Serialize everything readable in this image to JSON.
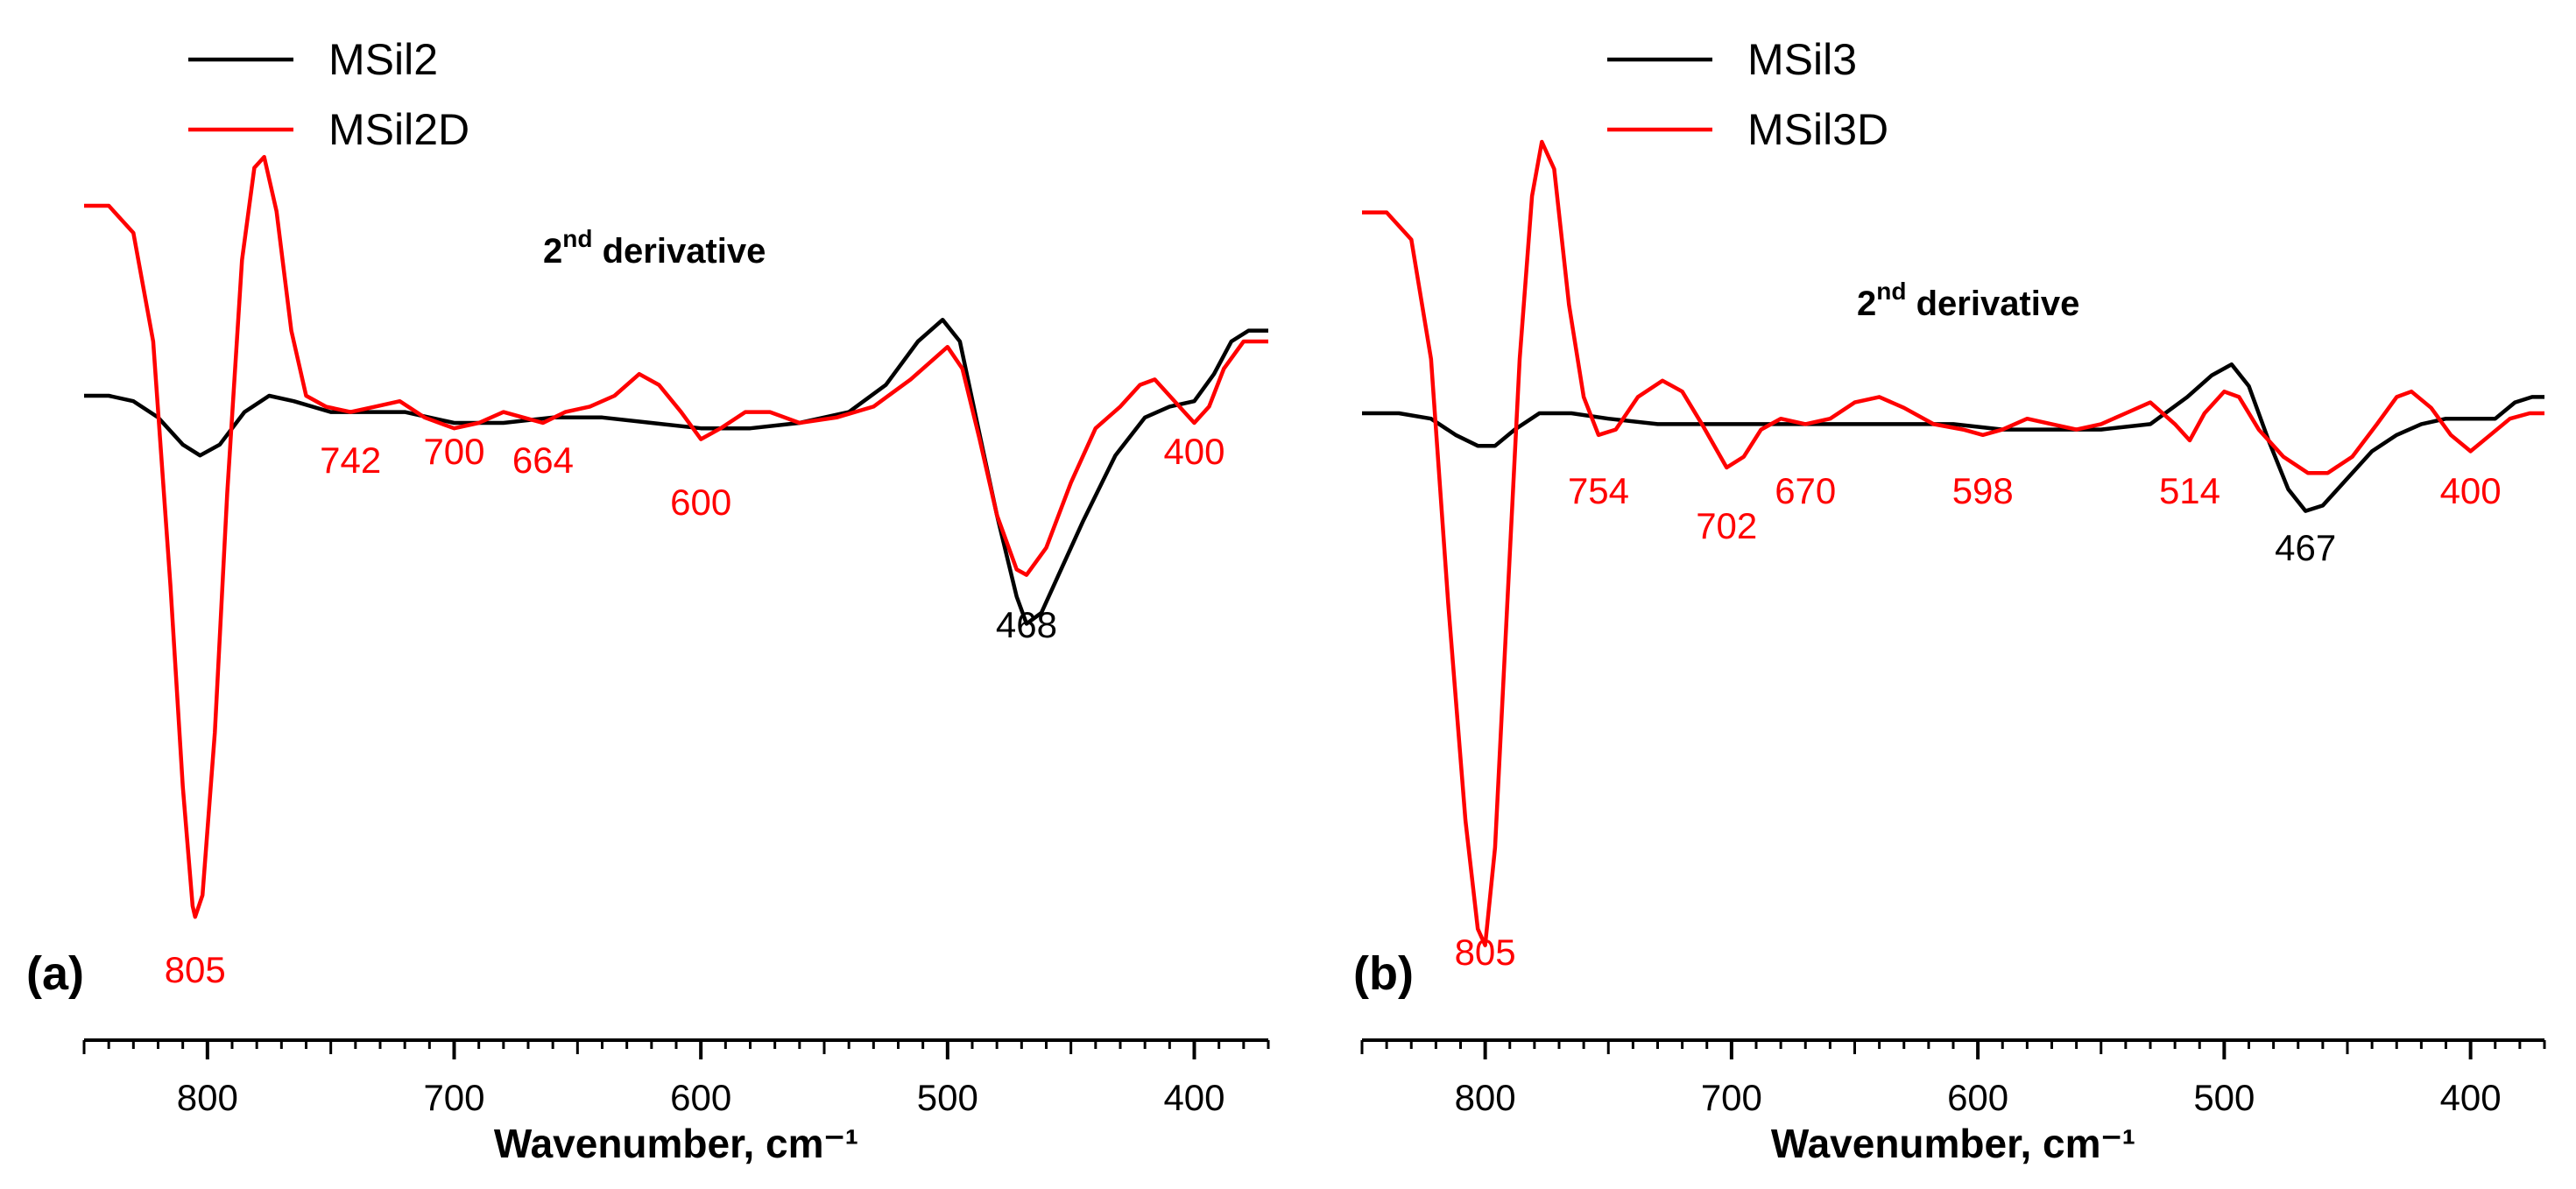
{
  "chart_data": [
    {
      "type": "line",
      "panel_label": "(a)",
      "title": "2nd derivative",
      "title_main": "2",
      "title_sup": "nd",
      "title_rest": " derivative",
      "xlabel": "Wavenumber, cm⁻¹",
      "ylabel": "",
      "xlim": [
        850,
        370
      ],
      "ylim": [
        -1.0,
        0.45
      ],
      "x_ticks": [
        800,
        700,
        600,
        500,
        400
      ],
      "x_tick_labels": [
        "800",
        "700",
        "600",
        "500",
        "400"
      ],
      "legend_position": "top-left",
      "series": [
        {
          "name": "MSil2",
          "color": "#000000",
          "points": [
            [
              850,
              0.0
            ],
            [
              840,
              0.0
            ],
            [
              830,
              -0.01
            ],
            [
              820,
              -0.04
            ],
            [
              810,
              -0.09
            ],
            [
              803,
              -0.11
            ],
            [
              795,
              -0.09
            ],
            [
              785,
              -0.03
            ],
            [
              775,
              0.0
            ],
            [
              765,
              -0.01
            ],
            [
              750,
              -0.03
            ],
            [
              740,
              -0.03
            ],
            [
              720,
              -0.03
            ],
            [
              700,
              -0.05
            ],
            [
              680,
              -0.05
            ],
            [
              660,
              -0.04
            ],
            [
              640,
              -0.04
            ],
            [
              620,
              -0.05
            ],
            [
              600,
              -0.06
            ],
            [
              580,
              -0.06
            ],
            [
              560,
              -0.05
            ],
            [
              540,
              -0.03
            ],
            [
              525,
              0.02
            ],
            [
              512,
              0.1
            ],
            [
              502,
              0.14
            ],
            [
              495,
              0.1
            ],
            [
              488,
              -0.05
            ],
            [
              480,
              -0.22
            ],
            [
              472,
              -0.37
            ],
            [
              468,
              -0.42
            ],
            [
              462,
              -0.4
            ],
            [
              455,
              -0.33
            ],
            [
              445,
              -0.23
            ],
            [
              432,
              -0.11
            ],
            [
              420,
              -0.04
            ],
            [
              410,
              -0.02
            ],
            [
              400,
              -0.01
            ],
            [
              392,
              0.04
            ],
            [
              385,
              0.1
            ],
            [
              378,
              0.12
            ],
            [
              370,
              0.12
            ]
          ]
        },
        {
          "name": "MSil2D",
          "color": "#ff0000",
          "points": [
            [
              850,
              0.35
            ],
            [
              840,
              0.35
            ],
            [
              830,
              0.3
            ],
            [
              822,
              0.1
            ],
            [
              815,
              -0.35
            ],
            [
              810,
              -0.72
            ],
            [
              806,
              -0.94
            ],
            [
              805,
              -0.96
            ],
            [
              802,
              -0.92
            ],
            [
              797,
              -0.62
            ],
            [
              792,
              -0.18
            ],
            [
              786,
              0.25
            ],
            [
              781,
              0.42
            ],
            [
              777,
              0.44
            ],
            [
              772,
              0.34
            ],
            [
              766,
              0.12
            ],
            [
              760,
              0.0
            ],
            [
              752,
              -0.02
            ],
            [
              742,
              -0.03
            ],
            [
              732,
              -0.02
            ],
            [
              722,
              -0.01
            ],
            [
              712,
              -0.04
            ],
            [
              700,
              -0.06
            ],
            [
              690,
              -0.05
            ],
            [
              680,
              -0.03
            ],
            [
              672,
              -0.04
            ],
            [
              664,
              -0.05
            ],
            [
              655,
              -0.03
            ],
            [
              645,
              -0.02
            ],
            [
              635,
              0.0
            ],
            [
              625,
              0.04
            ],
            [
              617,
              0.02
            ],
            [
              608,
              -0.03
            ],
            [
              600,
              -0.08
            ],
            [
              592,
              -0.06
            ],
            [
              582,
              -0.03
            ],
            [
              572,
              -0.03
            ],
            [
              560,
              -0.05
            ],
            [
              545,
              -0.04
            ],
            [
              530,
              -0.02
            ],
            [
              515,
              0.03
            ],
            [
              505,
              0.07
            ],
            [
              500,
              0.09
            ],
            [
              494,
              0.05
            ],
            [
              487,
              -0.08
            ],
            [
              480,
              -0.22
            ],
            [
              472,
              -0.32
            ],
            [
              468,
              -0.33
            ],
            [
              460,
              -0.28
            ],
            [
              450,
              -0.16
            ],
            [
              440,
              -0.06
            ],
            [
              430,
              -0.02
            ],
            [
              422,
              0.02
            ],
            [
              416,
              0.03
            ],
            [
              410,
              0.0
            ],
            [
              404,
              -0.03
            ],
            [
              400,
              -0.05
            ],
            [
              394,
              -0.02
            ],
            [
              388,
              0.05
            ],
            [
              380,
              0.1
            ],
            [
              370,
              0.1
            ]
          ]
        }
      ],
      "annotations": [
        {
          "text": "805",
          "x": 805,
          "color": "#ff0000",
          "ypos": "bottom"
        },
        {
          "text": "742",
          "x": 742,
          "color": "#ff0000",
          "ypos": "mid"
        },
        {
          "text": "700",
          "x": 700,
          "color": "#ff0000",
          "ypos": "mid2"
        },
        {
          "text": "664",
          "x": 664,
          "color": "#ff0000",
          "ypos": "mid"
        },
        {
          "text": "600",
          "x": 600,
          "color": "#ff0000",
          "ypos": "mid3"
        },
        {
          "text": "468",
          "x": 468,
          "color": "#000000",
          "ypos": "low"
        },
        {
          "text": "400",
          "x": 400,
          "color": "#ff0000",
          "ypos": "mid2"
        }
      ]
    },
    {
      "type": "line",
      "panel_label": "(b)",
      "title": "2nd derivative",
      "title_main": "2",
      "title_sup": "nd",
      "title_rest": " derivative",
      "xlabel": "Wavenumber, cm⁻¹",
      "ylabel": "",
      "xlim": [
        850,
        370
      ],
      "ylim": [
        -1.0,
        0.45
      ],
      "x_ticks": [
        800,
        700,
        600,
        500,
        400
      ],
      "x_tick_labels": [
        "800",
        "700",
        "600",
        "500",
        "400"
      ],
      "legend_position": "top-left",
      "series": [
        {
          "name": "MSil3",
          "color": "#000000",
          "points": [
            [
              850,
              0.0
            ],
            [
              835,
              0.0
            ],
            [
              822,
              -0.01
            ],
            [
              812,
              -0.04
            ],
            [
              803,
              -0.06
            ],
            [
              796,
              -0.06
            ],
            [
              788,
              -0.03
            ],
            [
              778,
              0.0
            ],
            [
              765,
              0.0
            ],
            [
              750,
              -0.01
            ],
            [
              730,
              -0.02
            ],
            [
              710,
              -0.02
            ],
            [
              690,
              -0.02
            ],
            [
              670,
              -0.02
            ],
            [
              650,
              -0.02
            ],
            [
              630,
              -0.02
            ],
            [
              610,
              -0.02
            ],
            [
              590,
              -0.03
            ],
            [
              570,
              -0.03
            ],
            [
              550,
              -0.03
            ],
            [
              530,
              -0.02
            ],
            [
              515,
              0.03
            ],
            [
              505,
              0.07
            ],
            [
              497,
              0.09
            ],
            [
              490,
              0.05
            ],
            [
              482,
              -0.05
            ],
            [
              474,
              -0.14
            ],
            [
              467,
              -0.18
            ],
            [
              460,
              -0.17
            ],
            [
              450,
              -0.12
            ],
            [
              440,
              -0.07
            ],
            [
              430,
              -0.04
            ],
            [
              420,
              -0.02
            ],
            [
              410,
              -0.01
            ],
            [
              400,
              -0.01
            ],
            [
              390,
              -0.01
            ],
            [
              382,
              0.02
            ],
            [
              375,
              0.03
            ],
            [
              370,
              0.03
            ]
          ]
        },
        {
          "name": "MSil3D",
          "color": "#ff0000",
          "points": [
            [
              850,
              0.37
            ],
            [
              840,
              0.37
            ],
            [
              830,
              0.32
            ],
            [
              822,
              0.1
            ],
            [
              815,
              -0.35
            ],
            [
              808,
              -0.75
            ],
            [
              803,
              -0.95
            ],
            [
              800,
              -0.98
            ],
            [
              796,
              -0.8
            ],
            [
              791,
              -0.35
            ],
            [
              786,
              0.1
            ],
            [
              781,
              0.4
            ],
            [
              777,
              0.5
            ],
            [
              772,
              0.45
            ],
            [
              766,
              0.2
            ],
            [
              760,
              0.03
            ],
            [
              754,
              -0.04
            ],
            [
              747,
              -0.03
            ],
            [
              738,
              0.03
            ],
            [
              728,
              0.06
            ],
            [
              720,
              0.04
            ],
            [
              712,
              -0.02
            ],
            [
              702,
              -0.1
            ],
            [
              695,
              -0.08
            ],
            [
              688,
              -0.03
            ],
            [
              680,
              -0.01
            ],
            [
              670,
              -0.02
            ],
            [
              660,
              -0.01
            ],
            [
              650,
              0.02
            ],
            [
              640,
              0.03
            ],
            [
              630,
              0.01
            ],
            [
              618,
              -0.02
            ],
            [
              606,
              -0.03
            ],
            [
              598,
              -0.04
            ],
            [
              590,
              -0.03
            ],
            [
              580,
              -0.01
            ],
            [
              570,
              -0.02
            ],
            [
              560,
              -0.03
            ],
            [
              550,
              -0.02
            ],
            [
              540,
              0.0
            ],
            [
              530,
              0.02
            ],
            [
              520,
              -0.02
            ],
            [
              514,
              -0.05
            ],
            [
              508,
              0.0
            ],
            [
              500,
              0.04
            ],
            [
              494,
              0.03
            ],
            [
              486,
              -0.03
            ],
            [
              476,
              -0.08
            ],
            [
              466,
              -0.11
            ],
            [
              458,
              -0.11
            ],
            [
              448,
              -0.08
            ],
            [
              438,
              -0.02
            ],
            [
              430,
              0.03
            ],
            [
              424,
              0.04
            ],
            [
              416,
              0.01
            ],
            [
              408,
              -0.04
            ],
            [
              400,
              -0.07
            ],
            [
              392,
              -0.04
            ],
            [
              384,
              -0.01
            ],
            [
              376,
              0.0
            ],
            [
              370,
              0.0
            ]
          ]
        }
      ],
      "annotations": [
        {
          "text": "805",
          "x": 800,
          "color": "#ff0000",
          "ypos": "bottom"
        },
        {
          "text": "754",
          "x": 754,
          "color": "#ff0000",
          "ypos": "mid"
        },
        {
          "text": "702",
          "x": 702,
          "color": "#ff0000",
          "ypos": "mid3"
        },
        {
          "text": "670",
          "x": 670,
          "color": "#ff0000",
          "ypos": "mid"
        },
        {
          "text": "598",
          "x": 598,
          "color": "#ff0000",
          "ypos": "mid"
        },
        {
          "text": "514",
          "x": 514,
          "color": "#ff0000",
          "ypos": "mid"
        },
        {
          "text": "467",
          "x": 467,
          "color": "#000000",
          "ypos": "mid4"
        },
        {
          "text": "400",
          "x": 400,
          "color": "#ff0000",
          "ypos": "mid"
        }
      ]
    }
  ]
}
